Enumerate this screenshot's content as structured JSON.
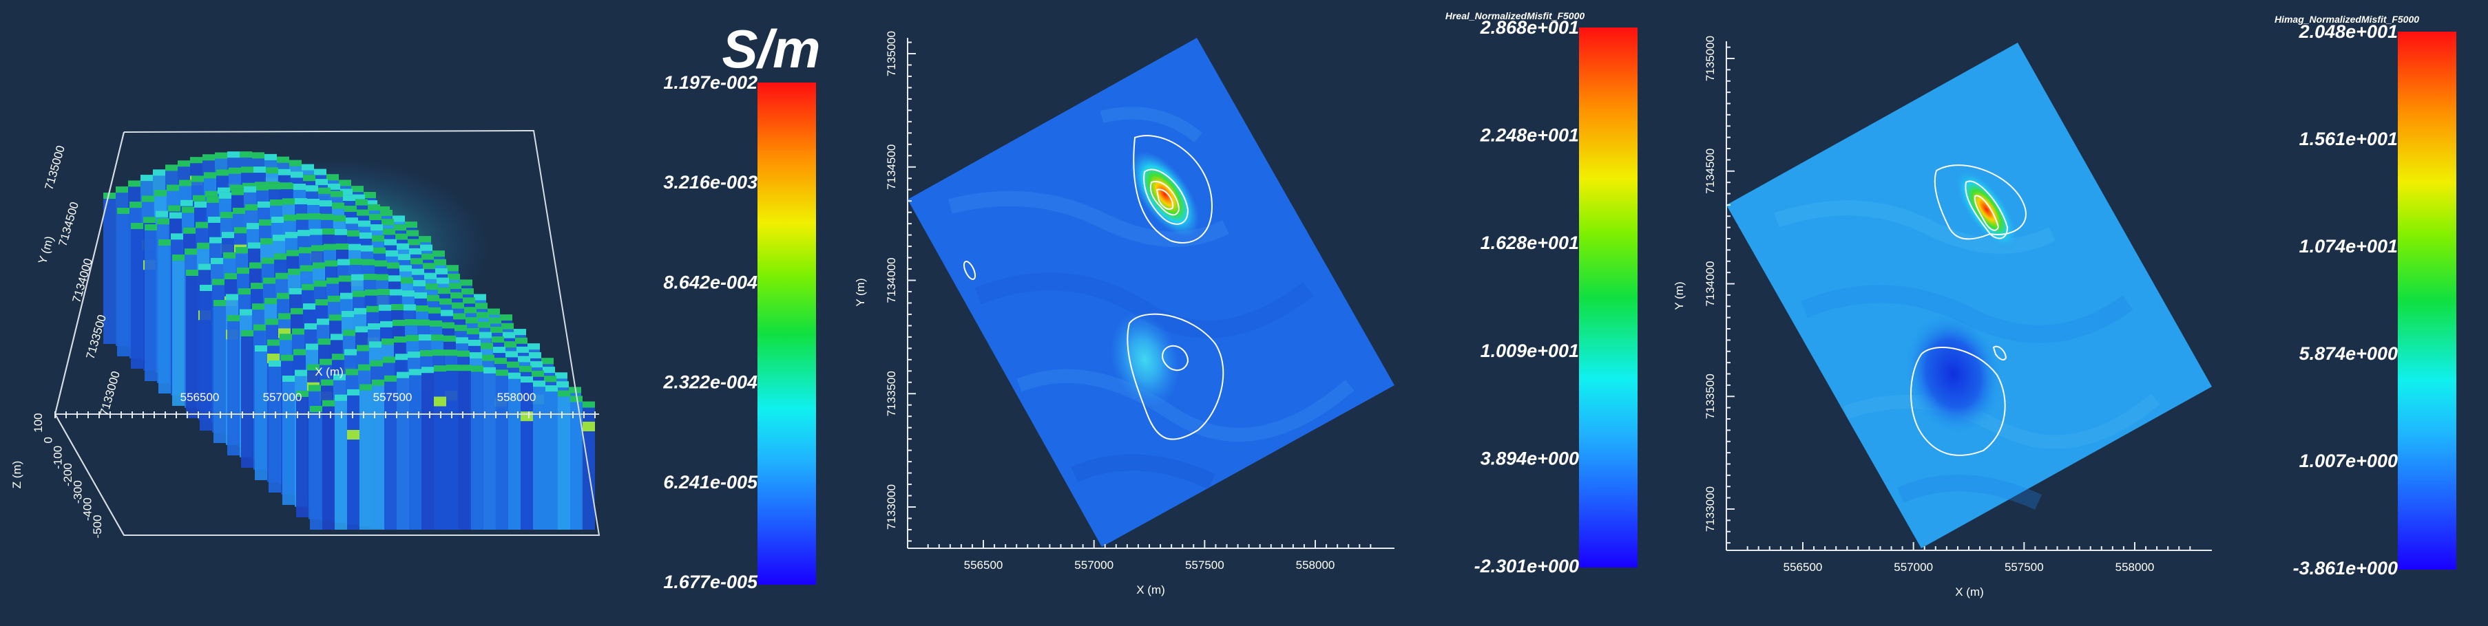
{
  "chart_data": [
    {
      "type": "volume3d",
      "x_ticks": [
        "556500",
        "557000",
        "557500",
        "558000"
      ],
      "y_ticks": [
        "7133000",
        "7133500",
        "7134000",
        "7134500",
        "7135000"
      ],
      "z_ticks": [
        "-500",
        "-400",
        "-300",
        "-200",
        "-100",
        "0",
        "100"
      ],
      "xlabel": "X (m)",
      "ylabel": "Y (m)",
      "zlabel": "Z (m)"
    },
    {
      "type": "colorbar",
      "title": "S/m",
      "scale": "log",
      "labels": [
        "1.197e-002",
        "3.216e-003",
        "8.642e-004",
        "2.322e-004",
        "6.241e-005",
        "1.677e-005"
      ]
    },
    {
      "type": "heatmap",
      "x_ticks": [
        "556500",
        "557000",
        "557500",
        "558000"
      ],
      "y_ticks": [
        "7133000",
        "7133500",
        "7134000",
        "7134500",
        "7135000"
      ],
      "xlabel": "X (m)",
      "ylabel": "Y (m)",
      "anomalies": [
        {
          "x": 557320,
          "y": 7134380,
          "peak": 28.68
        },
        {
          "x": 557230,
          "y": 7133650,
          "peak": 6.5
        }
      ]
    },
    {
      "type": "colorbar",
      "title": "Hreal_NormalizedMisfit_F5000",
      "labels": [
        "2.868e+001",
        "2.248e+001",
        "1.628e+001",
        "1.009e+001",
        "3.894e+000",
        "-2.301e+000"
      ]
    },
    {
      "type": "heatmap",
      "x_ticks": [
        "556500",
        "557000",
        "557500",
        "558000"
      ],
      "y_ticks": [
        "7133000",
        "7133500",
        "7134000",
        "7134500",
        "7135000"
      ],
      "xlabel": "X (m)",
      "ylabel": "Y (m)",
      "anomalies": [
        {
          "x": 557330,
          "y": 7134330,
          "peak": 20.48
        },
        {
          "x": 557180,
          "y": 7133600,
          "peak": -3.861
        }
      ]
    },
    {
      "type": "colorbar",
      "title": "Himag_NormalizedMisfit_F5000",
      "labels": [
        "2.048e+001",
        "1.561e+001",
        "1.074e+001",
        "5.874e+000",
        "1.007e+000",
        "-3.861e+000"
      ]
    }
  ],
  "colors": {
    "background": "#1b3048",
    "axis": "#e8ecf0",
    "map_base_left": "#1e6ae6",
    "map_base_right": "#28a0ee"
  }
}
